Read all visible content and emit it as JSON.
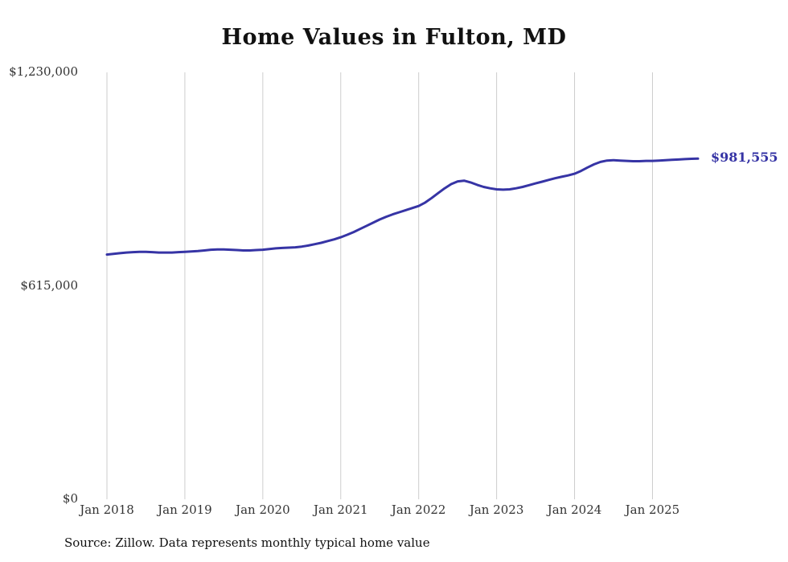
{
  "page": {
    "source_note": "Source: Zillow. Data represents monthly typical home value"
  },
  "chart_data": {
    "type": "line",
    "title": "Home Values in Fulton, MD",
    "xlabel": "",
    "ylabel": "",
    "ylim": [
      0,
      1230000
    ],
    "grid": "vertical-only",
    "grid_color": "#cccccc",
    "legend": "none",
    "line_color": "#3634a5",
    "end_label": "$981,555",
    "end_value": 981555,
    "y_ticks": [
      {
        "value": 1230000,
        "label": "$1,230,000"
      },
      {
        "value": 615000,
        "label": "$615,000"
      },
      {
        "value": 0,
        "label": "$0"
      }
    ],
    "x_ticks": [
      {
        "month_index": 0,
        "label": "Jan 2018"
      },
      {
        "month_index": 12,
        "label": "Jan 2019"
      },
      {
        "month_index": 24,
        "label": "Jan 2020"
      },
      {
        "month_index": 36,
        "label": "Jan 2021"
      },
      {
        "month_index": 48,
        "label": "Jan 2022"
      },
      {
        "month_index": 60,
        "label": "Jan 2023"
      },
      {
        "month_index": 72,
        "label": "Jan 2024"
      },
      {
        "month_index": 84,
        "label": "Jan 2025"
      }
    ],
    "x": [
      "2018-01",
      "2018-02",
      "2018-03",
      "2018-04",
      "2018-05",
      "2018-06",
      "2018-07",
      "2018-08",
      "2018-09",
      "2018-10",
      "2018-11",
      "2018-12",
      "2019-01",
      "2019-02",
      "2019-03",
      "2019-04",
      "2019-05",
      "2019-06",
      "2019-07",
      "2019-08",
      "2019-09",
      "2019-10",
      "2019-11",
      "2019-12",
      "2020-01",
      "2020-02",
      "2020-03",
      "2020-04",
      "2020-05",
      "2020-06",
      "2020-07",
      "2020-08",
      "2020-09",
      "2020-10",
      "2020-11",
      "2020-12",
      "2021-01",
      "2021-02",
      "2021-03",
      "2021-04",
      "2021-05",
      "2021-06",
      "2021-07",
      "2021-08",
      "2021-09",
      "2021-10",
      "2021-11",
      "2021-12",
      "2022-01",
      "2022-02",
      "2022-03",
      "2022-04",
      "2022-05",
      "2022-06",
      "2022-07",
      "2022-08",
      "2022-09",
      "2022-10",
      "2022-11",
      "2022-12",
      "2023-01",
      "2023-02",
      "2023-03",
      "2023-04",
      "2023-05",
      "2023-06",
      "2023-07",
      "2023-08",
      "2023-09",
      "2023-10",
      "2023-11",
      "2023-12",
      "2024-01",
      "2024-02",
      "2024-03",
      "2024-04",
      "2024-05",
      "2024-06",
      "2024-07",
      "2024-08",
      "2024-09",
      "2024-10",
      "2024-11",
      "2024-12",
      "2025-01",
      "2025-02",
      "2025-03",
      "2025-04",
      "2025-05",
      "2025-06",
      "2025-07",
      "2025-08"
    ],
    "values": [
      705000,
      707000,
      709000,
      711000,
      712000,
      713000,
      713000,
      712000,
      711000,
      711000,
      711000,
      712000,
      713000,
      714000,
      715000,
      717000,
      719000,
      720000,
      720000,
      719000,
      718000,
      717000,
      717000,
      718000,
      719000,
      721000,
      723000,
      724000,
      725000,
      726000,
      728000,
      731000,
      735000,
      739000,
      744000,
      749000,
      755000,
      762000,
      770000,
      779000,
      788000,
      797000,
      806000,
      814000,
      821000,
      827000,
      833000,
      839000,
      845000,
      855000,
      868000,
      882000,
      896000,
      908000,
      916000,
      918000,
      913000,
      906000,
      900000,
      896000,
      893000,
      892000,
      893000,
      896000,
      900000,
      905000,
      910000,
      915000,
      920000,
      925000,
      929000,
      933000,
      938000,
      946000,
      956000,
      965000,
      972000,
      976000,
      977000,
      976000,
      975000,
      974000,
      974000,
      975000,
      975000,
      976000,
      977000,
      978000,
      979000,
      980000,
      981000,
      981555
    ]
  }
}
